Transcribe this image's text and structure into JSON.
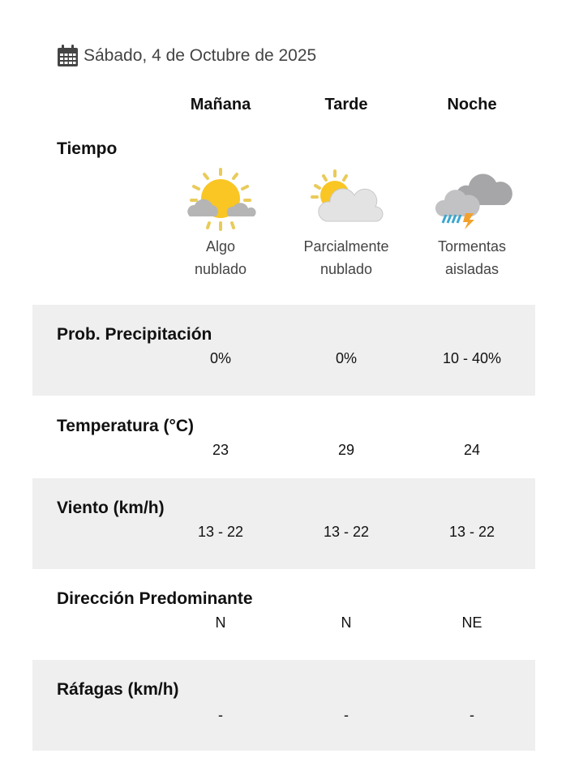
{
  "date": {
    "icon": "calendar-icon",
    "text": "Sábado, 4 de Octubre de 2025"
  },
  "columns": [
    "Mañana",
    "Tarde",
    "Noche"
  ],
  "weather": {
    "label": "Tiempo",
    "items": [
      {
        "icon": "sun-behind-clouds-icon",
        "line1": "Algo",
        "line2": "nublado"
      },
      {
        "icon": "partly-cloudy-icon",
        "line1": "Parcialmente",
        "line2": "nublado"
      },
      {
        "icon": "thunderstorm-icon",
        "line1": "Tormentas",
        "line2": "aisladas"
      }
    ]
  },
  "rows": [
    {
      "label": "Prob. Precipitación",
      "values": [
        "0%",
        "0%",
        "10 - 40%"
      ]
    },
    {
      "label": "Temperatura (°C)",
      "values": [
        "23",
        "29",
        "24"
      ]
    },
    {
      "label": "Viento (km/h)",
      "values": [
        "13 - 22",
        "13 - 22",
        "13 - 22"
      ]
    },
    {
      "label": "Dirección Predominante",
      "values": [
        "N",
        "N",
        "NE"
      ]
    },
    {
      "label": "Ráfagas (km/h)",
      "values": [
        "-",
        "-",
        "-"
      ]
    }
  ],
  "colors": {
    "band": "#efefef",
    "sun": "#f9c623",
    "cloud": "#b9b9b9",
    "text": "#111111"
  }
}
